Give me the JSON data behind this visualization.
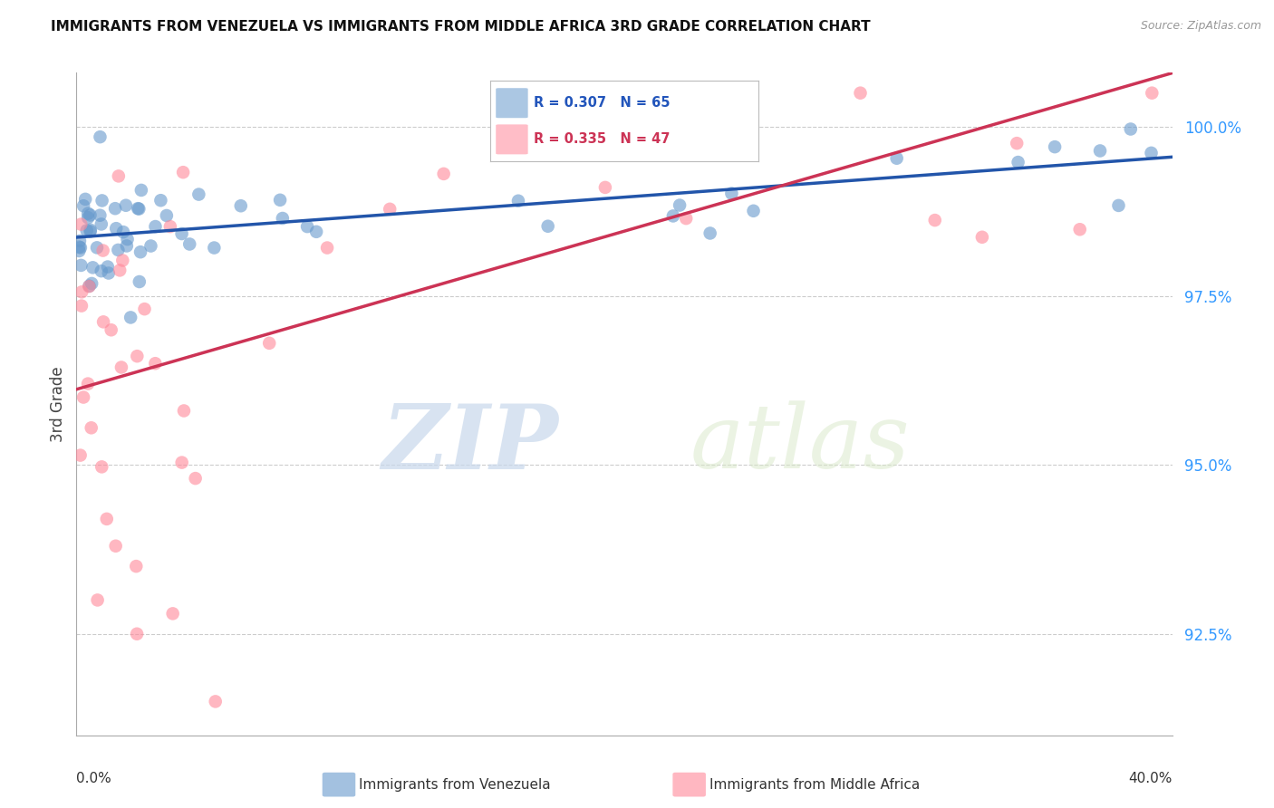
{
  "title": "IMMIGRANTS FROM VENEZUELA VS IMMIGRANTS FROM MIDDLE AFRICA 3RD GRADE CORRELATION CHART",
  "source": "Source: ZipAtlas.com",
  "ylabel": "3rd Grade",
  "ytick_values": [
    92.5,
    95.0,
    97.5,
    100.0
  ],
  "ylim": [
    91.0,
    100.8
  ],
  "xlim": [
    0.0,
    40.0
  ],
  "legend_r1": "R = 0.307",
  "legend_n1": "N = 65",
  "legend_r2": "R = 0.335",
  "legend_n2": "N = 47",
  "blue_color": "#6699CC",
  "pink_color": "#FF8899",
  "line_blue": "#2255AA",
  "line_pink": "#CC3355",
  "background_color": "#FFFFFF",
  "grid_color": "#CCCCCC",
  "watermark_zip": "ZIP",
  "watermark_atlas": "atlas"
}
